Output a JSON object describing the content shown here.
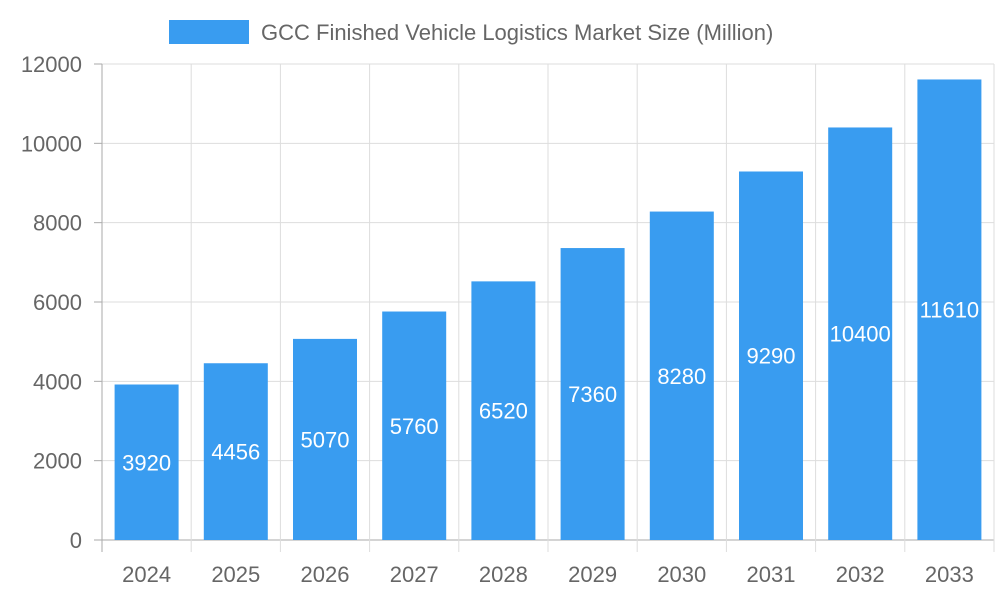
{
  "chart_data": {
    "type": "bar",
    "title": "",
    "xlabel": "",
    "ylabel": "",
    "categories": [
      "2024",
      "2025",
      "2026",
      "2027",
      "2028",
      "2029",
      "2030",
      "2031",
      "2032",
      "2033"
    ],
    "series": [
      {
        "name": "GCC Finished Vehicle Logistics Market Size (Million)",
        "values": [
          3920,
          4456,
          5070,
          5760,
          6520,
          7360,
          8280,
          9290,
          10400,
          11610
        ],
        "color": "#399cf0"
      }
    ],
    "ylim": [
      0,
      12000
    ],
    "yticks": [
      0,
      2000,
      4000,
      6000,
      8000,
      10000,
      12000
    ],
    "grid": true,
    "legend_position": "top",
    "data_labels": true
  }
}
